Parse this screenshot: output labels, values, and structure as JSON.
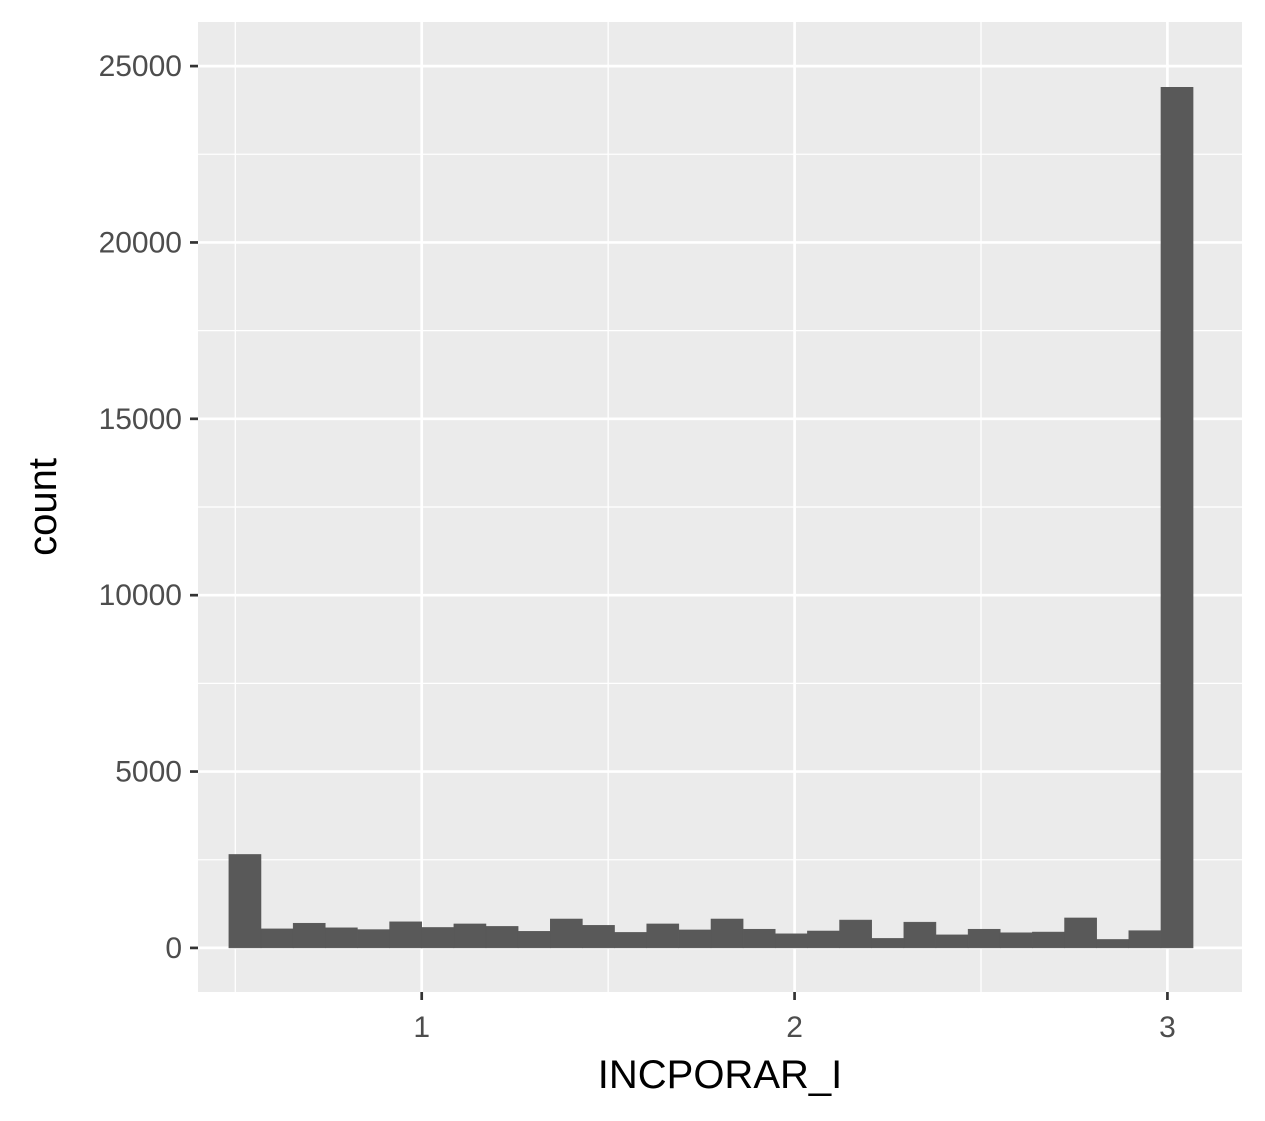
{
  "chart_data": {
    "type": "bar",
    "xlabel": "INCPORAR_I",
    "ylabel": "count",
    "xlim": [
      0.4,
      3.2
    ],
    "ylim": [
      -1250,
      26250
    ],
    "x_ticks": [
      1,
      2,
      3
    ],
    "x_minor_ticks": [
      0.5,
      1.5,
      2.5
    ],
    "y_ticks": [
      0,
      5000,
      10000,
      15000,
      20000,
      25000
    ],
    "y_minor_ticks": [
      2500,
      7500,
      12500,
      17500,
      22500
    ],
    "bin_start": 0.4828,
    "bin_width": 0.0862,
    "values": [
      2650,
      540,
      700,
      570,
      520,
      740,
      580,
      680,
      610,
      470,
      820,
      640,
      440,
      680,
      510,
      820,
      530,
      400,
      480,
      790,
      270,
      730,
      370,
      530,
      430,
      450,
      850,
      240,
      490,
      24400
    ],
    "grid": true,
    "colors": {
      "panel": "#ebebeb",
      "grid": "#ffffff",
      "bar": "#595959",
      "tick": "#333333"
    }
  }
}
